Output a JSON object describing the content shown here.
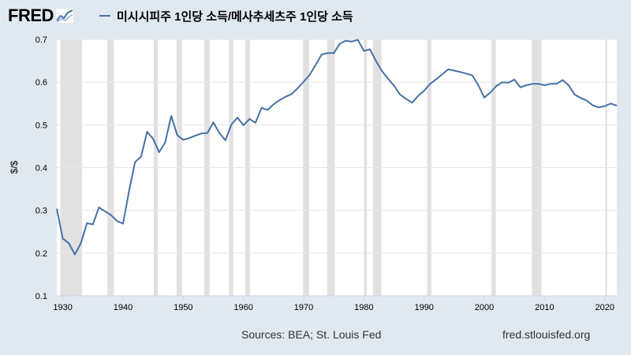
{
  "header": {
    "logo_text": "FRED",
    "logo_icon": "fred-graph-icon",
    "legend_label": "미시시피주 1인당 소득/메사추세츠주 1인당 소득"
  },
  "footer": {
    "sources": "Sources: BEA; St. Louis Fed",
    "url": "fred.stlouisfed.org"
  },
  "colors": {
    "background": "#e1e9f0",
    "plot_background": "#ffffff",
    "series_line": "#4572a7",
    "recession_band": "#e1e1e1",
    "gridline": "#e6e6e6"
  },
  "chart_data": {
    "type": "line",
    "title": "미시시피주 1인당 소득/메사추세츠주 1인당 소득",
    "xlabel": "",
    "ylabel": "$/$",
    "xlim": [
      1929,
      2022
    ],
    "ylim": [
      0.1,
      0.7
    ],
    "x_ticks": [
      1930,
      1940,
      1950,
      1960,
      1970,
      1980,
      1990,
      2000,
      2010,
      2020
    ],
    "y_ticks": [
      0.1,
      0.2,
      0.3,
      0.4,
      0.5,
      0.6,
      0.7
    ],
    "grid": "horizontal",
    "recessions": [
      [
        1929.6,
        1933.2
      ],
      [
        1937.4,
        1938.5
      ],
      [
        1945.1,
        1945.8
      ],
      [
        1948.9,
        1949.8
      ],
      [
        1953.5,
        1954.4
      ],
      [
        1957.6,
        1958.3
      ],
      [
        1960.3,
        1961.1
      ],
      [
        1969.9,
        1970.9
      ],
      [
        1973.9,
        1975.2
      ],
      [
        1980.0,
        1980.5
      ],
      [
        1981.5,
        1982.9
      ],
      [
        1990.5,
        1991.2
      ],
      [
        2001.2,
        2001.9
      ],
      [
        2007.9,
        2009.5
      ],
      [
        2020.1,
        2020.4
      ]
    ],
    "series": [
      {
        "name": "미시시피주 1인당 소득/메사추세츠주 1인당 소득",
        "x": [
          1929,
          1930,
          1931,
          1932,
          1933,
          1934,
          1935,
          1936,
          1937,
          1938,
          1939,
          1940,
          1941,
          1942,
          1943,
          1944,
          1945,
          1946,
          1947,
          1948,
          1949,
          1950,
          1951,
          1952,
          1953,
          1954,
          1955,
          1956,
          1957,
          1958,
          1959,
          1960,
          1961,
          1962,
          1963,
          1964,
          1965,
          1966,
          1967,
          1968,
          1969,
          1970,
          1971,
          1972,
          1973,
          1974,
          1975,
          1976,
          1977,
          1978,
          1979,
          1980,
          1981,
          1982,
          1983,
          1984,
          1985,
          1986,
          1987,
          1988,
          1989,
          1990,
          1991,
          1992,
          1993,
          1994,
          1995,
          1996,
          1997,
          1998,
          1999,
          2000,
          2001,
          2002,
          2003,
          2004,
          2005,
          2006,
          2007,
          2008,
          2009,
          2010,
          2011,
          2012,
          2013,
          2014,
          2015,
          2016,
          2017,
          2018,
          2019,
          2020,
          2021,
          2022
        ],
        "values": [
          0.304,
          0.234,
          0.223,
          0.197,
          0.223,
          0.27,
          0.267,
          0.307,
          0.298,
          0.289,
          0.275,
          0.269,
          0.345,
          0.413,
          0.426,
          0.484,
          0.467,
          0.436,
          0.459,
          0.521,
          0.476,
          0.465,
          0.469,
          0.475,
          0.48,
          0.481,
          0.506,
          0.481,
          0.464,
          0.501,
          0.517,
          0.499,
          0.514,
          0.505,
          0.54,
          0.535,
          0.548,
          0.558,
          0.566,
          0.572,
          0.586,
          0.601,
          0.617,
          0.641,
          0.665,
          0.668,
          0.668,
          0.69,
          0.697,
          0.695,
          0.699,
          0.673,
          0.677,
          0.65,
          0.626,
          0.608,
          0.592,
          0.571,
          0.561,
          0.552,
          0.568,
          0.58,
          0.596,
          0.607,
          0.618,
          0.63,
          0.627,
          0.624,
          0.62,
          0.616,
          0.593,
          0.564,
          0.576,
          0.591,
          0.6,
          0.599,
          0.606,
          0.588,
          0.593,
          0.596,
          0.596,
          0.593,
          0.596,
          0.596,
          0.605,
          0.593,
          0.571,
          0.563,
          0.557,
          0.546,
          0.541,
          0.544,
          0.55,
          0.545
        ]
      }
    ]
  }
}
